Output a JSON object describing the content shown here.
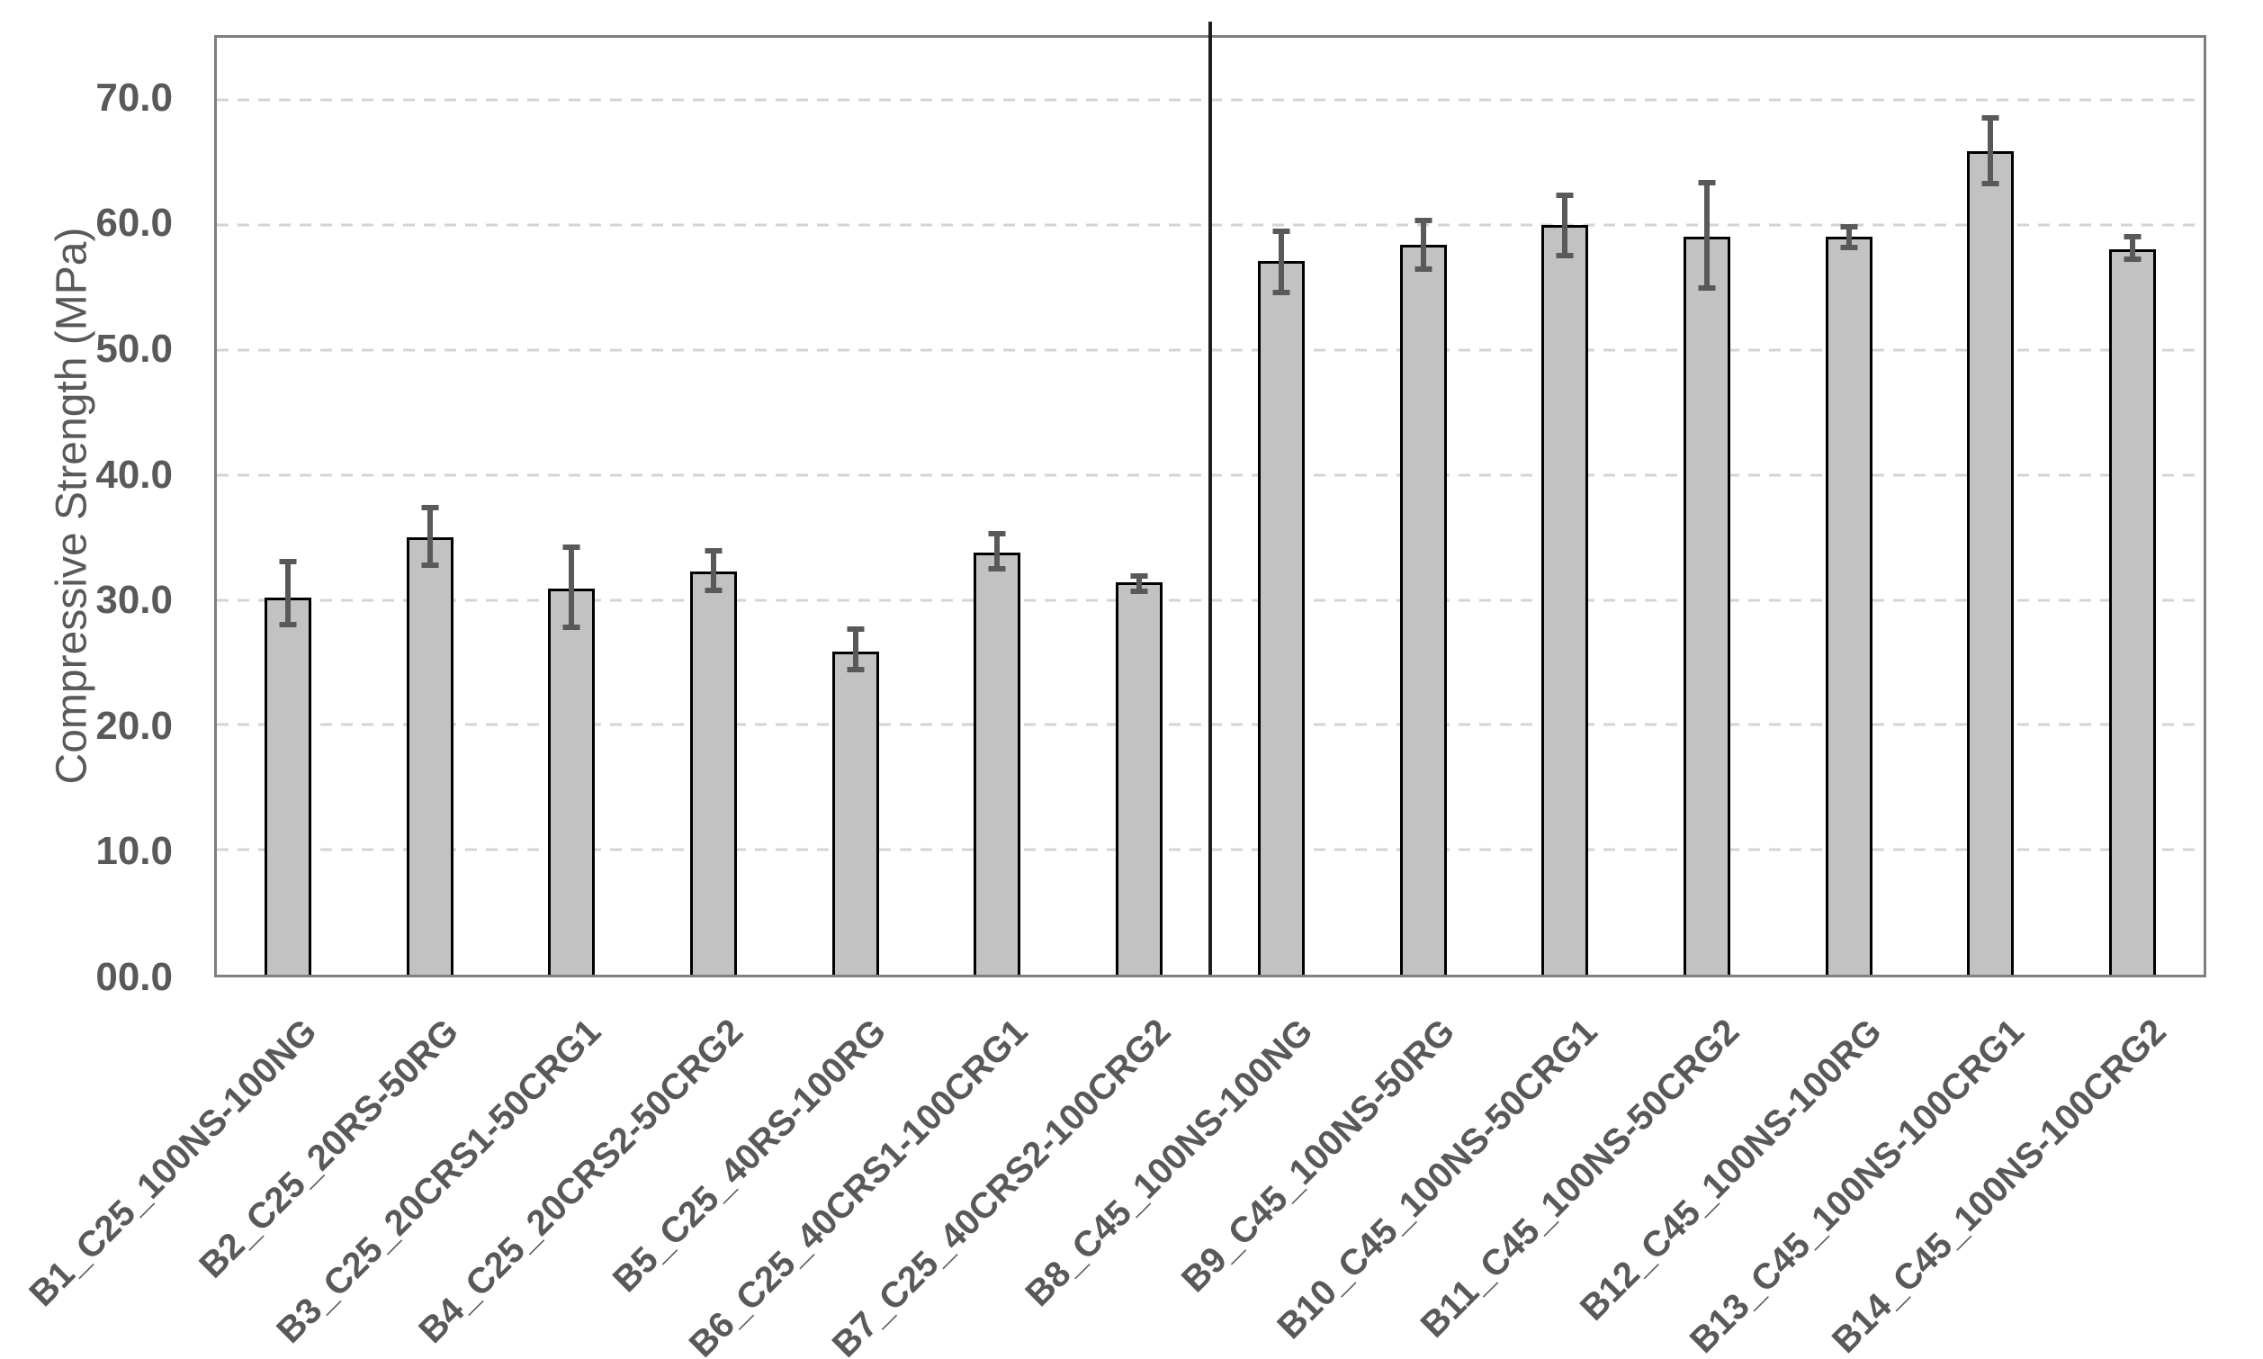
{
  "chart_data": {
    "type": "bar",
    "title": "",
    "xlabel": "",
    "ylabel": "Compressive Strength (MPa)",
    "ylim": [
      0,
      75
    ],
    "yticks": [
      0,
      10,
      20,
      30,
      40,
      50,
      60,
      70
    ],
    "ytick_labels": [
      "00.0",
      "10.0",
      "20.0",
      "30.0",
      "40.0",
      "50.0",
      "60.0",
      "70.0"
    ],
    "grid": "horizontal-dashed",
    "legend": "none",
    "group_divider_after_category": 7,
    "categories": [
      "B1_C25_100NS-100NG",
      "B2_C25_20RS-50RG",
      "B3_C25_20CRS1-50CRG1",
      "B4_C25_20CRS2-50CRG2",
      "B5_C25_40RS-100RG",
      "B6_C25_40CRS1-100CRG1",
      "B7_C25_40CRS2-100CRG2",
      "B8_C45_100NS-100NG",
      "B9_C45_100NS-50RG",
      "B10_C45_100NS-50CRG1",
      "B11_C45_100NS-50CRG2",
      "B12_C45_100NS-100RG",
      "B13_C45_100NS-100CRG1",
      "B14_C45_100NS-100CRG2"
    ],
    "series": [
      {
        "name": "Compressive Strength (MPa)",
        "values": [
          30.2,
          35.0,
          30.9,
          32.3,
          25.9,
          33.8,
          31.4,
          57.1,
          58.4,
          60.0,
          59.1,
          59.1,
          65.9,
          58.1
        ],
        "error_low": [
          28.0,
          32.8,
          27.8,
          30.8,
          24.4,
          32.5,
          30.7,
          54.6,
          56.5,
          57.6,
          55.0,
          58.2,
          63.3,
          57.3
        ],
        "error_high": [
          33.1,
          37.4,
          34.2,
          33.9,
          27.7,
          35.3,
          31.9,
          59.5,
          60.4,
          62.4,
          63.4,
          59.9,
          68.6,
          59.1
        ]
      }
    ],
    "colors": {
      "bar_fill": "#c2c2c2",
      "bar_border": "#000000",
      "error_bar": "#595959",
      "axis_border": "#7f7f7f",
      "gridline": "#d4d4d4",
      "text": "#595959",
      "divider": "#1f1f1f",
      "background": "#ffffff"
    }
  }
}
